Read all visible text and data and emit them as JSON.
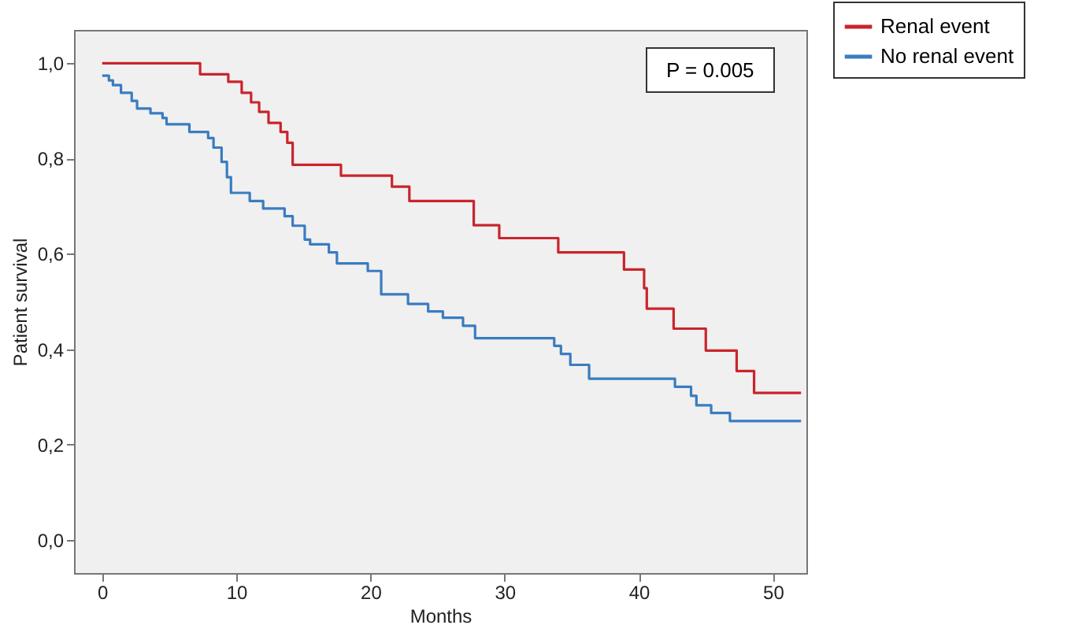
{
  "chart_data": {
    "type": "step",
    "xlabel": "Months",
    "ylabel": "Patient survival",
    "annotations": [
      "P = 0.005"
    ],
    "xlim": [
      -2.1,
      52.5
    ],
    "ylim": [
      -0.07,
      1.07
    ],
    "xticks": [
      0,
      10,
      20,
      30,
      40,
      50
    ],
    "yticks": [
      {
        "value": 0,
        "label": "0,0"
      },
      {
        "value": 0.2,
        "label": "0,2"
      },
      {
        "value": 0.4,
        "label": "0,4"
      },
      {
        "value": 0.6,
        "label": "0,6"
      },
      {
        "value": 0.8,
        "label": "0,8"
      },
      {
        "value": 1,
        "label": "1,0"
      }
    ],
    "grid": false,
    "legend": "top right",
    "marker": "none",
    "line_style": "solid",
    "series": [
      {
        "name": "Renal event",
        "color": "#c8252c",
        "x": [
          0,
          7.3,
          9.4,
          10.4,
          11.1,
          11.7,
          12.4,
          13.3,
          13.8,
          14.2,
          17.8,
          21.6,
          22.9,
          27.7,
          29.6,
          34.0,
          38.9,
          40.4,
          40.6,
          42.6,
          45.0,
          47.3,
          48.6,
          52.1
        ],
        "values": [
          1.0,
          0.977,
          0.961,
          0.938,
          0.918,
          0.898,
          0.875,
          0.856,
          0.833,
          0.787,
          0.764,
          0.741,
          0.711,
          0.66,
          0.633,
          0.603,
          0.567,
          0.528,
          0.485,
          0.443,
          0.397,
          0.354,
          0.308,
          0.308
        ]
      },
      {
        "name": "No renal event",
        "color": "#3a7cc0",
        "x": [
          0,
          0.5,
          0.8,
          1.4,
          2.2,
          2.6,
          3.6,
          4.5,
          4.8,
          6.5,
          7.9,
          8.3,
          8.9,
          9.3,
          9.6,
          11.0,
          12.0,
          13.6,
          14.2,
          15.1,
          15.5,
          16.9,
          17.5,
          19.8,
          20.8,
          22.8,
          24.3,
          25.4,
          26.9,
          27.8,
          33.7,
          34.2,
          34.9,
          36.3,
          42.7,
          43.9,
          44.3,
          45.4,
          46.8,
          52.1
        ],
        "values": [
          0.974,
          0.964,
          0.954,
          0.938,
          0.921,
          0.905,
          0.895,
          0.885,
          0.872,
          0.856,
          0.843,
          0.823,
          0.793,
          0.761,
          0.728,
          0.711,
          0.695,
          0.679,
          0.659,
          0.63,
          0.62,
          0.603,
          0.58,
          0.564,
          0.515,
          0.495,
          0.479,
          0.466,
          0.449,
          0.423,
          0.407,
          0.39,
          0.367,
          0.338,
          0.321,
          0.302,
          0.282,
          0.266,
          0.249,
          0.249
        ]
      }
    ]
  }
}
